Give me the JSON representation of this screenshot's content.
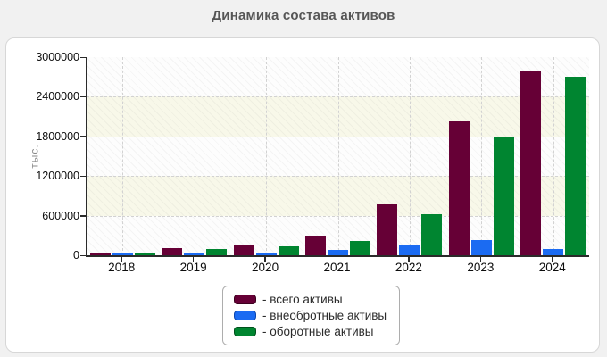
{
  "title": "Динамика состава активов",
  "y_axis": {
    "label": "тыс.",
    "ticks": [
      "3000000",
      "2400000",
      "1800000",
      "1200000",
      "600000",
      "0"
    ]
  },
  "x_axis": {
    "ticks": [
      "2018",
      "2019",
      "2020",
      "2021",
      "2022",
      "2023",
      "2024"
    ]
  },
  "chart_data": {
    "type": "bar",
    "title": "Динамика состава активов",
    "xlabel": "",
    "ylabel": "тыс.",
    "ylim": [
      0,
      3000000
    ],
    "grid": "dashed, horizontal and vertical",
    "legend_position": "bottom-center",
    "categories": [
      "2018",
      "2019",
      "2020",
      "2021",
      "2022",
      "2023",
      "2024"
    ],
    "series": [
      {
        "name": "всего активы",
        "color": "#660036",
        "border_color": "#3c001f",
        "values": [
          20000,
          105000,
          145000,
          300000,
          775000,
          2025000,
          2790000
        ]
      },
      {
        "name": "внеобротные активы",
        "color": "#1b6bf2",
        "border_color": "#0d47b0",
        "values": [
          8000,
          13000,
          14000,
          80000,
          160000,
          225000,
          90000
        ]
      },
      {
        "name": "оборотные активы",
        "color": "#008530",
        "border_color": "#00511c",
        "values": [
          12000,
          92000,
          131000,
          220000,
          615000,
          1800000,
          2700000
        ]
      }
    ]
  },
  "legend": {
    "items": [
      {
        "label": "- всего активы",
        "color": "#660036",
        "border_color": "#3c001f"
      },
      {
        "label": "- внеобротные активы",
        "color": "#1b6bf2",
        "border_color": "#0d47b0"
      },
      {
        "label": "- оборотные активы",
        "color": "#008530",
        "border_color": "#00511c"
      }
    ]
  },
  "style": {
    "band_white": "#fdfdfd",
    "band_cream": "#f8f8e9",
    "page_bg": "#f1f1f1"
  }
}
